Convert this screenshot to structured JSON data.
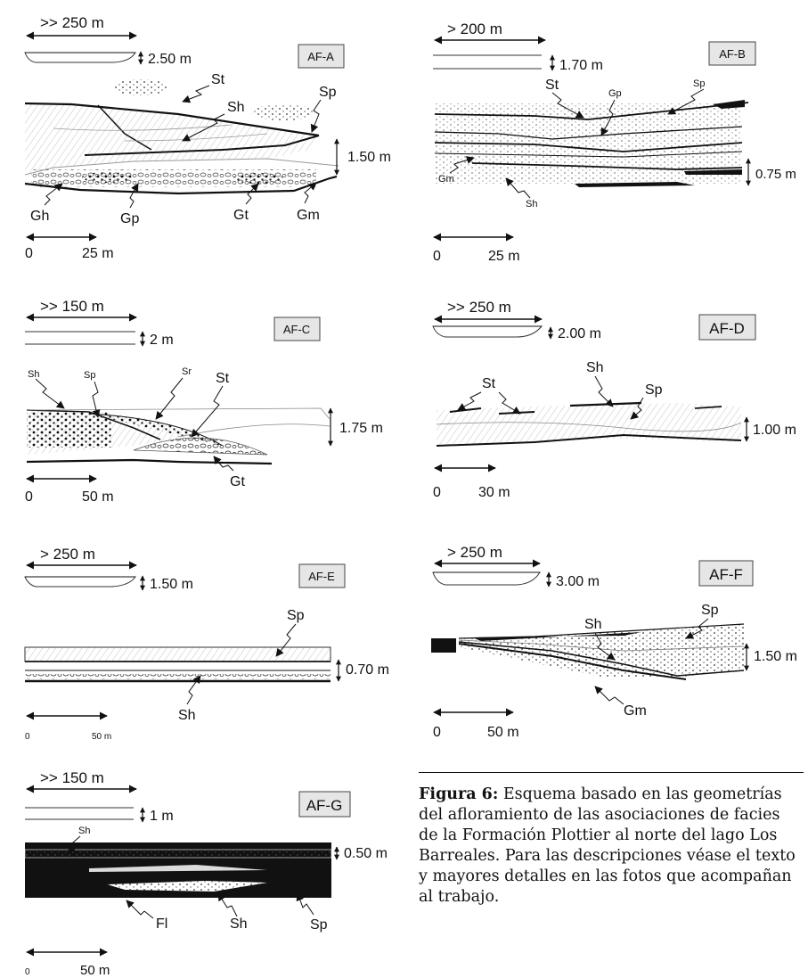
{
  "panels": [
    {
      "id": "AF-A",
      "width_label": ">> 250  m",
      "thick_label": "2.50  m",
      "sec_label": "1.50 m",
      "scale_0": "0",
      "scale_label": "25 m",
      "facies": [
        "St",
        "Sh",
        "Sp",
        "Gh",
        "Gp",
        "Gt",
        "Gm"
      ]
    },
    {
      "id": "AF-B",
      "width_label": "> 200  m",
      "thick_label": "1.70 m",
      "sec_label": "0.75 m",
      "scale_0": "0",
      "scale_label": "25 m",
      "facies": [
        "St",
        "Gp",
        "Sp",
        "Gm",
        "Sh"
      ]
    },
    {
      "id": "AF-C",
      "width_label": ">> 150  m",
      "thick_label": "2 m",
      "sec_label": "1.75 m",
      "scale_0": "0",
      "scale_label": "50 m",
      "facies": [
        "Sh",
        "Sp",
        "Sr",
        "St",
        "Gt"
      ]
    },
    {
      "id": "AF-D",
      "width_label": ">> 250  m",
      "thick_label": "2.00 m",
      "sec_label": "1.00 m",
      "scale_0": "0",
      "scale_label": "30 m",
      "facies": [
        "St",
        "Sh",
        "Sp"
      ]
    },
    {
      "id": "AF-E",
      "width_label": "> 250  m",
      "thick_label": "1.50 m",
      "sec_label": "0.70 m",
      "scale_0": "0",
      "scale_label": "50 m",
      "facies": [
        "Sp",
        "Sh"
      ]
    },
    {
      "id": "AF-F",
      "width_label": "> 250  m",
      "thick_label": "3.00 m",
      "sec_label": "1.50 m",
      "scale_0": "0",
      "scale_label": "50 m",
      "facies": [
        "Sh",
        "Sp",
        "Gm"
      ]
    },
    {
      "id": "AF-G",
      "width_label": ">> 150  m",
      "thick_label": "1 m",
      "sec_label": "0.50 m",
      "scale_0": "0",
      "scale_label": "50 m",
      "facies": [
        "Sh",
        "Fl",
        "Sh",
        "Sp"
      ]
    }
  ],
  "caption": {
    "label": "Figura 6:",
    "text": " Esquema basado en las geometrías del afloramiento de las asociaciones de facies de la Formación Plottier al norte del lago Los Barreales. Para las descripciones véase el texto y mayores detalles en las fotos que acompañan al trabajo."
  }
}
